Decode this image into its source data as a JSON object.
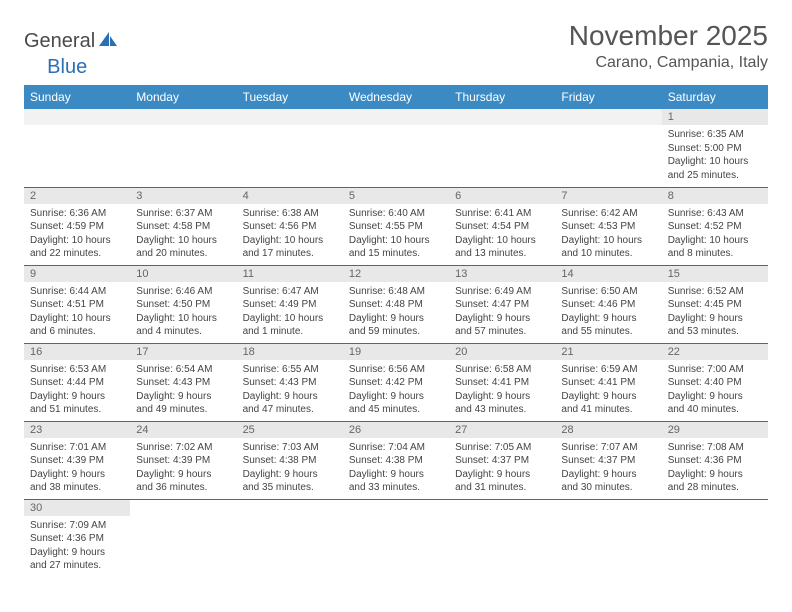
{
  "logo": {
    "part1": "General",
    "part2": "Blue"
  },
  "title": "November 2025",
  "location": "Carano, Campania, Italy",
  "colors": {
    "header_bg": "#3b8ac4",
    "header_text": "#ffffff",
    "row_divider": "#2a6fb5",
    "daynum_bg": "#e8e8e8",
    "body_text": "#444444",
    "title_text": "#555555"
  },
  "weekdays": [
    "Sunday",
    "Monday",
    "Tuesday",
    "Wednesday",
    "Thursday",
    "Friday",
    "Saturday"
  ],
  "weeks": [
    [
      null,
      null,
      null,
      null,
      null,
      null,
      {
        "n": "1",
        "sunrise": "Sunrise: 6:35 AM",
        "sunset": "Sunset: 5:00 PM",
        "daylight": "Daylight: 10 hours and 25 minutes."
      }
    ],
    [
      {
        "n": "2",
        "sunrise": "Sunrise: 6:36 AM",
        "sunset": "Sunset: 4:59 PM",
        "daylight": "Daylight: 10 hours and 22 minutes."
      },
      {
        "n": "3",
        "sunrise": "Sunrise: 6:37 AM",
        "sunset": "Sunset: 4:58 PM",
        "daylight": "Daylight: 10 hours and 20 minutes."
      },
      {
        "n": "4",
        "sunrise": "Sunrise: 6:38 AM",
        "sunset": "Sunset: 4:56 PM",
        "daylight": "Daylight: 10 hours and 17 minutes."
      },
      {
        "n": "5",
        "sunrise": "Sunrise: 6:40 AM",
        "sunset": "Sunset: 4:55 PM",
        "daylight": "Daylight: 10 hours and 15 minutes."
      },
      {
        "n": "6",
        "sunrise": "Sunrise: 6:41 AM",
        "sunset": "Sunset: 4:54 PM",
        "daylight": "Daylight: 10 hours and 13 minutes."
      },
      {
        "n": "7",
        "sunrise": "Sunrise: 6:42 AM",
        "sunset": "Sunset: 4:53 PM",
        "daylight": "Daylight: 10 hours and 10 minutes."
      },
      {
        "n": "8",
        "sunrise": "Sunrise: 6:43 AM",
        "sunset": "Sunset: 4:52 PM",
        "daylight": "Daylight: 10 hours and 8 minutes."
      }
    ],
    [
      {
        "n": "9",
        "sunrise": "Sunrise: 6:44 AM",
        "sunset": "Sunset: 4:51 PM",
        "daylight": "Daylight: 10 hours and 6 minutes."
      },
      {
        "n": "10",
        "sunrise": "Sunrise: 6:46 AM",
        "sunset": "Sunset: 4:50 PM",
        "daylight": "Daylight: 10 hours and 4 minutes."
      },
      {
        "n": "11",
        "sunrise": "Sunrise: 6:47 AM",
        "sunset": "Sunset: 4:49 PM",
        "daylight": "Daylight: 10 hours and 1 minute."
      },
      {
        "n": "12",
        "sunrise": "Sunrise: 6:48 AM",
        "sunset": "Sunset: 4:48 PM",
        "daylight": "Daylight: 9 hours and 59 minutes."
      },
      {
        "n": "13",
        "sunrise": "Sunrise: 6:49 AM",
        "sunset": "Sunset: 4:47 PM",
        "daylight": "Daylight: 9 hours and 57 minutes."
      },
      {
        "n": "14",
        "sunrise": "Sunrise: 6:50 AM",
        "sunset": "Sunset: 4:46 PM",
        "daylight": "Daylight: 9 hours and 55 minutes."
      },
      {
        "n": "15",
        "sunrise": "Sunrise: 6:52 AM",
        "sunset": "Sunset: 4:45 PM",
        "daylight": "Daylight: 9 hours and 53 minutes."
      }
    ],
    [
      {
        "n": "16",
        "sunrise": "Sunrise: 6:53 AM",
        "sunset": "Sunset: 4:44 PM",
        "daylight": "Daylight: 9 hours and 51 minutes."
      },
      {
        "n": "17",
        "sunrise": "Sunrise: 6:54 AM",
        "sunset": "Sunset: 4:43 PM",
        "daylight": "Daylight: 9 hours and 49 minutes."
      },
      {
        "n": "18",
        "sunrise": "Sunrise: 6:55 AM",
        "sunset": "Sunset: 4:43 PM",
        "daylight": "Daylight: 9 hours and 47 minutes."
      },
      {
        "n": "19",
        "sunrise": "Sunrise: 6:56 AM",
        "sunset": "Sunset: 4:42 PM",
        "daylight": "Daylight: 9 hours and 45 minutes."
      },
      {
        "n": "20",
        "sunrise": "Sunrise: 6:58 AM",
        "sunset": "Sunset: 4:41 PM",
        "daylight": "Daylight: 9 hours and 43 minutes."
      },
      {
        "n": "21",
        "sunrise": "Sunrise: 6:59 AM",
        "sunset": "Sunset: 4:41 PM",
        "daylight": "Daylight: 9 hours and 41 minutes."
      },
      {
        "n": "22",
        "sunrise": "Sunrise: 7:00 AM",
        "sunset": "Sunset: 4:40 PM",
        "daylight": "Daylight: 9 hours and 40 minutes."
      }
    ],
    [
      {
        "n": "23",
        "sunrise": "Sunrise: 7:01 AM",
        "sunset": "Sunset: 4:39 PM",
        "daylight": "Daylight: 9 hours and 38 minutes."
      },
      {
        "n": "24",
        "sunrise": "Sunrise: 7:02 AM",
        "sunset": "Sunset: 4:39 PM",
        "daylight": "Daylight: 9 hours and 36 minutes."
      },
      {
        "n": "25",
        "sunrise": "Sunrise: 7:03 AM",
        "sunset": "Sunset: 4:38 PM",
        "daylight": "Daylight: 9 hours and 35 minutes."
      },
      {
        "n": "26",
        "sunrise": "Sunrise: 7:04 AM",
        "sunset": "Sunset: 4:38 PM",
        "daylight": "Daylight: 9 hours and 33 minutes."
      },
      {
        "n": "27",
        "sunrise": "Sunrise: 7:05 AM",
        "sunset": "Sunset: 4:37 PM",
        "daylight": "Daylight: 9 hours and 31 minutes."
      },
      {
        "n": "28",
        "sunrise": "Sunrise: 7:07 AM",
        "sunset": "Sunset: 4:37 PM",
        "daylight": "Daylight: 9 hours and 30 minutes."
      },
      {
        "n": "29",
        "sunrise": "Sunrise: 7:08 AM",
        "sunset": "Sunset: 4:36 PM",
        "daylight": "Daylight: 9 hours and 28 minutes."
      }
    ],
    [
      {
        "n": "30",
        "sunrise": "Sunrise: 7:09 AM",
        "sunset": "Sunset: 4:36 PM",
        "daylight": "Daylight: 9 hours and 27 minutes."
      },
      null,
      null,
      null,
      null,
      null,
      null
    ]
  ]
}
